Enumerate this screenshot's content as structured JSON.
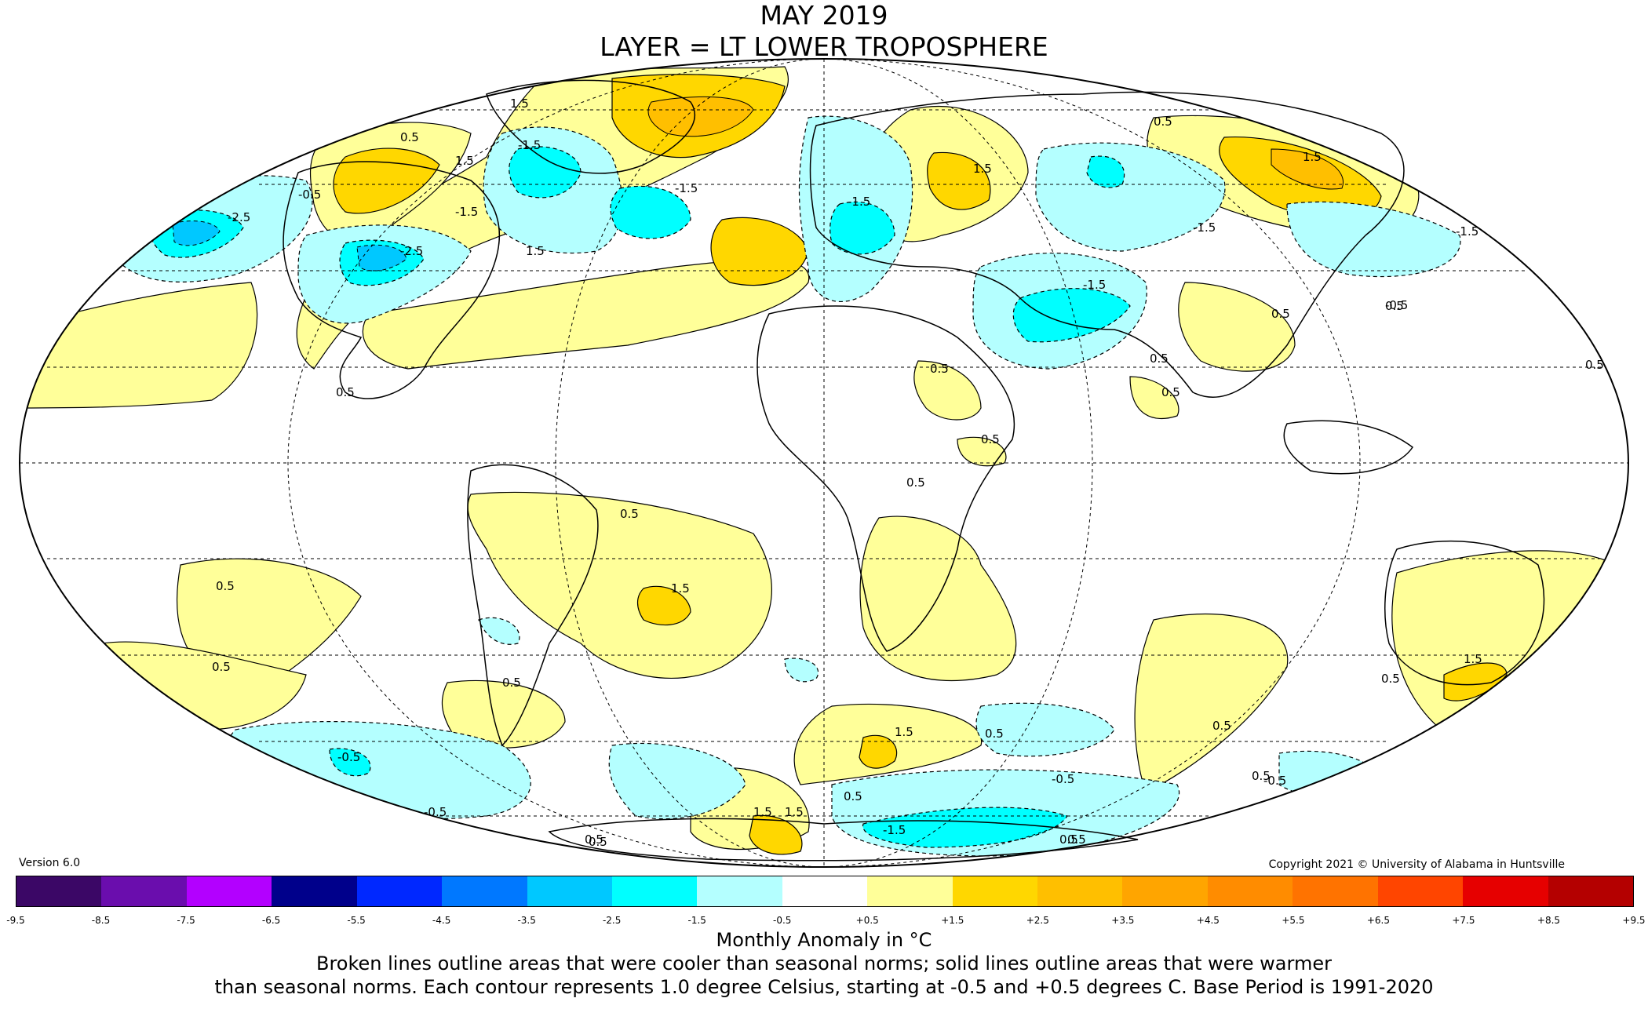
{
  "title": {
    "line1": "MAY 2019",
    "line2": "LAYER = LT LOWER TROPOSPHERE"
  },
  "version": "Version 6.0",
  "copyright": "Copyright 2021 © University of Alabama in Huntsville",
  "legend": {
    "units_label": "Monthly Anomaly in °C",
    "bins": [
      {
        "from": -9.5,
        "to": -8.5,
        "color": "#3b0766"
      },
      {
        "from": -8.5,
        "to": -7.5,
        "color": "#6a0dad"
      },
      {
        "from": -7.5,
        "to": -6.5,
        "color": "#b300ff"
      },
      {
        "from": -6.5,
        "to": -5.5,
        "color": "#00008b"
      },
      {
        "from": -5.5,
        "to": -4.5,
        "color": "#0028ff"
      },
      {
        "from": -4.5,
        "to": -3.5,
        "color": "#0078ff"
      },
      {
        "from": -3.5,
        "to": -2.5,
        "color": "#00c8ff"
      },
      {
        "from": -2.5,
        "to": -1.5,
        "color": "#00ffff"
      },
      {
        "from": -1.5,
        "to": -0.5,
        "color": "#b4ffff"
      },
      {
        "from": -0.5,
        "to": 0.5,
        "color": "#ffffff"
      },
      {
        "from": 0.5,
        "to": 1.5,
        "color": "#ffff99"
      },
      {
        "from": 1.5,
        "to": 2.5,
        "color": "#ffd700"
      },
      {
        "from": 2.5,
        "to": 3.5,
        "color": "#ffbf00"
      },
      {
        "from": 3.5,
        "to": 4.5,
        "color": "#ffa500"
      },
      {
        "from": 4.5,
        "to": 5.5,
        "color": "#ff8c00"
      },
      {
        "from": 5.5,
        "to": 6.5,
        "color": "#ff7300"
      },
      {
        "from": 6.5,
        "to": 7.5,
        "color": "#ff4500"
      },
      {
        "from": 7.5,
        "to": 8.5,
        "color": "#e60000"
      },
      {
        "from": 8.5,
        "to": 9.5,
        "color": "#b40000"
      }
    ],
    "tick_labels": [
      "-9.5",
      "-8.5",
      "-7.5",
      "-6.5",
      "-5.5",
      "-4.5",
      "-3.5",
      "-2.5",
      "-1.5",
      "-0.5",
      "+0.5",
      "+1.5",
      "+2.5",
      "+3.5",
      "+4.5",
      "+5.5",
      "+6.5",
      "+7.5",
      "+8.5",
      "+9.5"
    ]
  },
  "notes": {
    "line1": "Broken lines outline areas that were cooler than seasonal norms; solid lines outline areas that were warmer",
    "line2": "than seasonal norms. Each contour represents 1.0 degree Celsius, starting at -0.5 and +0.5 degrees C. Base Period is 1991-2020"
  },
  "map": {
    "projection": "Mollweide",
    "anomaly_regions": [
      {
        "name": "north-atlantic-greenland-warm",
        "level": 2.5,
        "lon": -30,
        "lat": 78
      },
      {
        "name": "eastern-europe-warm",
        "level": 1.5,
        "lon": 35,
        "lat": 55
      },
      {
        "name": "east-siberia-warm",
        "level": 1.5,
        "lon": 140,
        "lat": 62
      },
      {
        "name": "north-atlantic-east-warm",
        "level": 1.5,
        "lon": -20,
        "lat": 40
      },
      {
        "name": "northwest-atlantic-cold",
        "level": -1.5,
        "lon": -50,
        "lat": 50
      },
      {
        "name": "gulf-of-alaska-cold",
        "level": -2.5,
        "lon": -170,
        "lat": 48
      },
      {
        "name": "western-us-cold",
        "level": -2.5,
        "lon": -120,
        "lat": 42
      },
      {
        "name": "mediterranean-cold",
        "level": -1.5,
        "lon": 15,
        "lat": 42
      },
      {
        "name": "middle-east-cold",
        "level": -1.5,
        "lon": 50,
        "lat": 30
      },
      {
        "name": "south-atlantic-warm",
        "level": 1.5,
        "lon": -25,
        "lat": -25
      },
      {
        "name": "australia-south-warm",
        "level": 1.5,
        "lon": 145,
        "lat": -35
      },
      {
        "name": "southern-ocean-cold",
        "level": -1.5,
        "lon": 80,
        "lat": -60
      }
    ],
    "contour_labels": [
      "1.5",
      "0.5",
      "1.5",
      "-1.5",
      "-0.5",
      "-2.5",
      "-1.5",
      "-1.5",
      "-2.5",
      "1.5",
      "1.5",
      "-1.5",
      "-1.5",
      "1.5",
      "0.5",
      "0.5",
      "0.5",
      "-1.5",
      "0.5",
      "0.5",
      "-0.5",
      "0.5",
      "0.5",
      "0.5",
      "0.5",
      "0.5",
      "0.5",
      "1.5",
      "0.5",
      "0.5",
      "1.5",
      "0.5",
      "0.5",
      "1.5",
      "0.5",
      "-0.5",
      "0.5",
      "-0.5",
      "1.5",
      "-0.5",
      "-1.5",
      "-0.5",
      "0.5",
      "1.5",
      "0.5",
      "0.5",
      "0.5",
      "-1.5",
      "0.5",
      "0.5"
    ]
  }
}
